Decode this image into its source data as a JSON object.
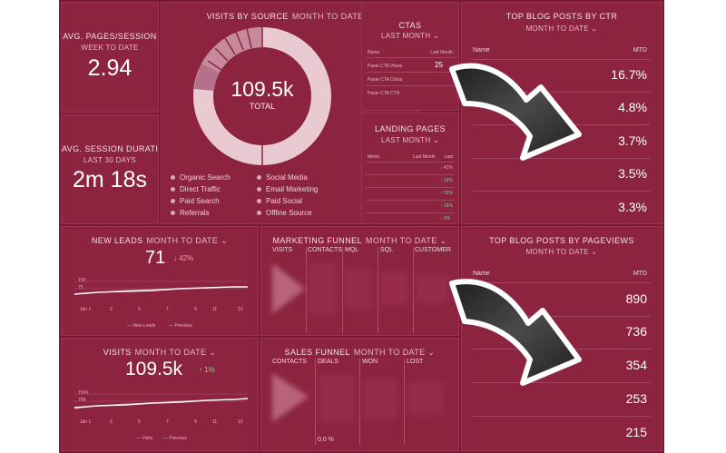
{
  "avg_pages": {
    "title": "AVG. PAGES/SESSION",
    "period": "WEEK TO DATE",
    "value": "2.94"
  },
  "avg_duration": {
    "title": "AVG. SESSION DURATI...",
    "period": "LAST 30 DAYS",
    "value": "2m 18s"
  },
  "visits_by_source": {
    "title": "VISITS BY SOURCE",
    "period": "MONTH TO DATE",
    "total_value": "109.5k",
    "total_label": "TOTAL",
    "legend": [
      "Organic Search",
      "Social Media",
      "Direct Traffic",
      "Email Marketing",
      "Paid Search",
      "Paid Social",
      "Referrals",
      "Offline Source"
    ]
  },
  "ctas": {
    "title": "CTAS",
    "period": "LAST MONTH",
    "col_left": "Name",
    "col_right": "Last Month",
    "rows": [
      "Paste CTA Views",
      "Paste CTA Clicks",
      "Paste CTA CTR"
    ],
    "row0_value": "25"
  },
  "landing": {
    "title": "LANDING PAGES",
    "period": "LAST MONTH",
    "col_left": "Metric",
    "col_mid": "Last Month",
    "col_right": "Last",
    "deltas": [
      "↓ 42%",
      "↑ 19%",
      "↑ 15%",
      "↑ 19%",
      "↑ 9%"
    ]
  },
  "top_ctr": {
    "title": "TOP BLOG POSTS BY CTR",
    "period": "MONTH TO DATE",
    "col_name": "Name",
    "col_value": "MTD",
    "values": [
      "16.7%",
      "4.8%",
      "3.7%",
      "3.5%",
      "3.3%"
    ]
  },
  "top_pageviews": {
    "title": "TOP BLOG POSTS BY PAGEVIEWS",
    "period": "MONTH TO DATE",
    "col_name": "Name",
    "col_value": "MTD",
    "values": [
      "890",
      "736",
      "354",
      "253",
      "215"
    ]
  },
  "new_leads": {
    "title": "NEW LEADS",
    "period": "MONTH TO DATE",
    "value": "71",
    "delta": "↓ 42%",
    "y_ticks": [
      "150",
      "75"
    ],
    "x_ticks": [
      "Jan 1",
      "3",
      "5",
      "7",
      "9",
      "11",
      "13"
    ],
    "legend_current": "New Leads",
    "legend_previous": "Previous"
  },
  "visits": {
    "title": "VISITS",
    "period": "MONTH TO DATE",
    "value": "109.5k",
    "delta": "↑ 1%",
    "y_ticks": [
      "150K",
      "75K"
    ],
    "x_ticks": [
      "Jan 1",
      "3",
      "5",
      "7",
      "9",
      "11",
      "13"
    ],
    "legend_current": "Visits",
    "legend_previous": "Previous"
  },
  "marketing_funnel": {
    "title": "MARKETING FUNNEL",
    "period": "MONTH TO DATE",
    "columns": [
      "VISITS",
      "CONTACTS",
      "MQL",
      "SQL",
      "CUSTOMER"
    ]
  },
  "sales_funnel": {
    "title": "SALES FUNNEL",
    "period": "MONTH TO DATE",
    "columns": [
      "CONTACTS",
      "DEALS",
      "WON",
      "LOST"
    ],
    "footer": "0.0 %"
  },
  "colors": {
    "background": "#7a1a34",
    "panel": "#8c2440",
    "up": "#7fd18a",
    "down": "#ff9aa8",
    "arrow": "#2b2b2b"
  }
}
